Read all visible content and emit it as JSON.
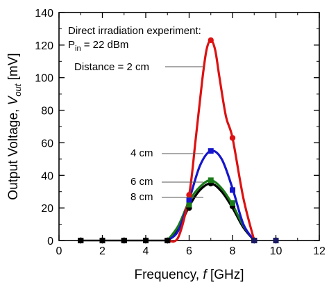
{
  "chart_data": {
    "type": "line",
    "title": "",
    "xlabel": {
      "main": "Frequency, ",
      "var": "f",
      "unit": " [GHz]"
    },
    "ylabel": {
      "main": "Output Voltage, ",
      "var": "V",
      "sub": "out",
      "unit": " [mV]"
    },
    "xlim": [
      0,
      12
    ],
    "ylim": [
      0,
      140
    ],
    "xticks": [
      0,
      2,
      4,
      6,
      8,
      10,
      12
    ],
    "yticks": [
      0,
      20,
      40,
      60,
      80,
      100,
      120,
      140
    ],
    "grid": false,
    "annotations": {
      "experiment": "Direct irradiation experiment:",
      "pin_main": "P",
      "pin_sub": "in",
      "pin_rest": " = 22 dBm"
    },
    "series": [
      {
        "label": "8 cm",
        "color": "#000000",
        "marker": "circle",
        "x": [
          1,
          2,
          3,
          4,
          5,
          6,
          7,
          8,
          9,
          10
        ],
        "y": [
          0,
          0,
          0,
          0,
          0,
          20,
          35,
          21,
          0,
          0
        ],
        "curve_x": [
          5,
          5.5,
          6,
          6.5,
          7,
          7.5,
          8,
          8.5,
          9
        ],
        "curve_y": [
          0,
          7,
          21,
          31,
          35,
          30,
          20,
          8,
          0
        ]
      },
      {
        "label": "6 cm",
        "color": "#1a7a1a",
        "marker": "square",
        "x": [
          1,
          2,
          3,
          4,
          5,
          6,
          7,
          8,
          9,
          10
        ],
        "y": [
          0,
          0,
          0,
          0,
          0,
          22,
          37,
          23,
          0,
          0
        ],
        "curve_x": [
          5,
          5.5,
          6,
          6.5,
          7,
          7.5,
          8,
          8.5,
          9
        ],
        "curve_y": [
          0,
          9,
          24,
          33,
          37,
          32,
          22,
          9,
          0
        ]
      },
      {
        "label": "4 cm",
        "color": "#1515cc",
        "marker": "square",
        "x": [
          1,
          2,
          3,
          4,
          5,
          6,
          7,
          8,
          9,
          10
        ],
        "y": [
          0,
          0,
          0,
          0,
          0,
          25,
          55,
          31,
          0,
          0
        ],
        "curve_x": [
          5,
          5.5,
          6,
          6.5,
          7,
          7.5,
          8,
          8.5,
          9
        ],
        "curve_y": [
          0,
          6,
          25,
          46,
          55,
          50,
          32,
          10,
          0
        ]
      },
      {
        "label": "Distance = 2 cm",
        "color": "#dd1111",
        "marker": "circle",
        "x": [
          1,
          2,
          3,
          4,
          5,
          6,
          7,
          8,
          9,
          10
        ],
        "y": [
          0,
          0,
          0,
          0,
          0,
          28,
          123,
          63,
          0,
          0
        ],
        "curve_x": [
          5,
          5.5,
          6,
          6.3,
          6.6,
          6.8,
          7,
          7.2,
          7.4,
          7.7,
          8,
          8.5,
          9
        ],
        "curve_y": [
          0,
          2,
          28,
          62,
          98,
          117,
          123,
          117,
          100,
          76,
          63,
          26,
          0
        ]
      }
    ]
  }
}
